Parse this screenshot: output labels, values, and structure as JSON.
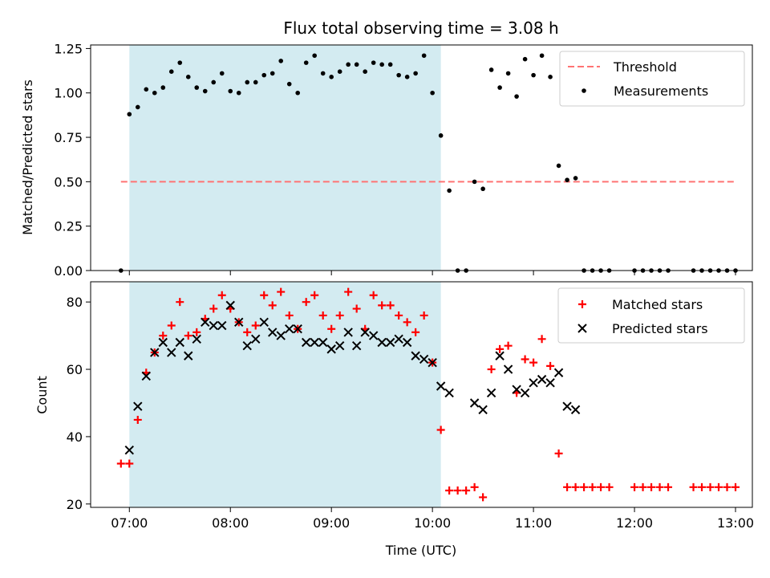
{
  "chart_data": [
    {
      "type": "scatter",
      "title": "Flux total observing time = 3.08 h",
      "xlabel": "",
      "ylabel": "Matched/Predicted stars",
      "xlim": [
        "06:37",
        "13:10"
      ],
      "ylim": [
        0,
        1.27
      ],
      "yticks": [
        "0.00",
        "0.25",
        "0.50",
        "0.75",
        "1.00",
        "1.25"
      ],
      "ytick_values": [
        0,
        0.25,
        0.5,
        0.75,
        1.0,
        1.25
      ],
      "shaded_span": [
        "07:00",
        "10:05"
      ],
      "shaded_color": "#d3ebf1",
      "legend_position": "top-right",
      "threshold": {
        "name": "Threshold",
        "y": 0.5,
        "x_start": "06:55",
        "x_end": "13:00",
        "color": "#ff7373"
      },
      "series": [
        {
          "name": "Measurements",
          "marker": "dot",
          "color": "#000000",
          "points": [
            [
              "06:55",
              0.0
            ],
            [
              "07:00",
              0.88
            ],
            [
              "07:05",
              0.92
            ],
            [
              "07:10",
              1.02
            ],
            [
              "07:15",
              1.0
            ],
            [
              "07:20",
              1.03
            ],
            [
              "07:25",
              1.12
            ],
            [
              "07:30",
              1.17
            ],
            [
              "07:35",
              1.09
            ],
            [
              "07:40",
              1.03
            ],
            [
              "07:45",
              1.01
            ],
            [
              "07:50",
              1.06
            ],
            [
              "07:55",
              1.11
            ],
            [
              "08:00",
              1.01
            ],
            [
              "08:05",
              1.0
            ],
            [
              "08:10",
              1.06
            ],
            [
              "08:15",
              1.06
            ],
            [
              "08:20",
              1.1
            ],
            [
              "08:25",
              1.11
            ],
            [
              "08:30",
              1.18
            ],
            [
              "08:35",
              1.05
            ],
            [
              "08:40",
              1.0
            ],
            [
              "08:45",
              1.17
            ],
            [
              "08:50",
              1.21
            ],
            [
              "08:55",
              1.11
            ],
            [
              "09:00",
              1.09
            ],
            [
              "09:05",
              1.12
            ],
            [
              "09:10",
              1.16
            ],
            [
              "09:15",
              1.16
            ],
            [
              "09:20",
              1.12
            ],
            [
              "09:25",
              1.17
            ],
            [
              "09:30",
              1.16
            ],
            [
              "09:35",
              1.16
            ],
            [
              "09:40",
              1.1
            ],
            [
              "09:45",
              1.09
            ],
            [
              "09:50",
              1.11
            ],
            [
              "09:55",
              1.21
            ],
            [
              "10:00",
              1.0
            ],
            [
              "10:05",
              0.76
            ],
            [
              "10:10",
              0.45
            ],
            [
              "10:15",
              0.0
            ],
            [
              "10:20",
              0.0
            ],
            [
              "10:25",
              0.5
            ],
            [
              "10:30",
              0.46
            ],
            [
              "10:35",
              1.13
            ],
            [
              "10:40",
              1.03
            ],
            [
              "10:45",
              1.11
            ],
            [
              "10:50",
              0.98
            ],
            [
              "10:55",
              1.19
            ],
            [
              "11:00",
              1.1
            ],
            [
              "11:05",
              1.21
            ],
            [
              "11:10",
              1.09
            ],
            [
              "11:15",
              0.59
            ],
            [
              "11:20",
              0.51
            ],
            [
              "11:25",
              0.52
            ],
            [
              "11:30",
              0.0
            ],
            [
              "11:35",
              0.0
            ],
            [
              "11:40",
              0.0
            ],
            [
              "11:45",
              0.0
            ],
            [
              "12:00",
              0.0
            ],
            [
              "12:05",
              0.0
            ],
            [
              "12:10",
              0.0
            ],
            [
              "12:15",
              0.0
            ],
            [
              "12:20",
              0.0
            ],
            [
              "12:35",
              0.0
            ],
            [
              "12:40",
              0.0
            ],
            [
              "12:45",
              0.0
            ],
            [
              "12:50",
              0.0
            ],
            [
              "12:55",
              0.0
            ],
            [
              "13:00",
              0.0
            ]
          ]
        }
      ]
    },
    {
      "type": "scatter",
      "title": "",
      "xlabel": "Time (UTC)",
      "ylabel": "Count",
      "xlim": [
        "06:37",
        "13:10"
      ],
      "ylim": [
        19,
        86
      ],
      "yticks": [
        "20",
        "40",
        "60",
        "80"
      ],
      "ytick_values": [
        20,
        40,
        60,
        80
      ],
      "xticks": [
        "07:00",
        "08:00",
        "09:00",
        "10:00",
        "11:00",
        "12:00",
        "13:00"
      ],
      "shaded_span": [
        "07:00",
        "10:05"
      ],
      "shaded_color": "#d3ebf1",
      "legend_position": "top-right",
      "series": [
        {
          "name": "Matched stars",
          "marker": "plus",
          "color": "#ff0000",
          "points": [
            [
              "06:55",
              32
            ],
            [
              "07:00",
              32
            ],
            [
              "07:05",
              45
            ],
            [
              "07:10",
              59
            ],
            [
              "07:15",
              65
            ],
            [
              "07:20",
              70
            ],
            [
              "07:25",
              73
            ],
            [
              "07:30",
              80
            ],
            [
              "07:35",
              70
            ],
            [
              "07:40",
              71
            ],
            [
              "07:45",
              75
            ],
            [
              "07:50",
              78
            ],
            [
              "07:55",
              82
            ],
            [
              "08:00",
              78
            ],
            [
              "08:05",
              74
            ],
            [
              "08:10",
              71
            ],
            [
              "08:15",
              73
            ],
            [
              "08:20",
              82
            ],
            [
              "08:25",
              79
            ],
            [
              "08:30",
              83
            ],
            [
              "08:35",
              76
            ],
            [
              "08:40",
              72
            ],
            [
              "08:45",
              80
            ],
            [
              "08:50",
              82
            ],
            [
              "08:55",
              76
            ],
            [
              "09:00",
              72
            ],
            [
              "09:05",
              76
            ],
            [
              "09:10",
              83
            ],
            [
              "09:15",
              78
            ],
            [
              "09:20",
              72
            ],
            [
              "09:25",
              82
            ],
            [
              "09:30",
              79
            ],
            [
              "09:35",
              79
            ],
            [
              "09:40",
              76
            ],
            [
              "09:45",
              74
            ],
            [
              "09:50",
              71
            ],
            [
              "09:55",
              76
            ],
            [
              "10:00",
              62
            ],
            [
              "10:05",
              42
            ],
            [
              "10:10",
              24
            ],
            [
              "10:15",
              24
            ],
            [
              "10:20",
              24
            ],
            [
              "10:25",
              25
            ],
            [
              "10:30",
              22
            ],
            [
              "10:35",
              60
            ],
            [
              "10:40",
              66
            ],
            [
              "10:45",
              67
            ],
            [
              "10:50",
              53
            ],
            [
              "10:55",
              63
            ],
            [
              "11:00",
              62
            ],
            [
              "11:05",
              69
            ],
            [
              "11:10",
              61
            ],
            [
              "11:15",
              35
            ],
            [
              "11:20",
              25
            ],
            [
              "11:25",
              25
            ],
            [
              "11:30",
              25
            ],
            [
              "11:35",
              25
            ],
            [
              "11:40",
              25
            ],
            [
              "11:45",
              25
            ],
            [
              "12:00",
              25
            ],
            [
              "12:05",
              25
            ],
            [
              "12:10",
              25
            ],
            [
              "12:15",
              25
            ],
            [
              "12:20",
              25
            ],
            [
              "12:35",
              25
            ],
            [
              "12:40",
              25
            ],
            [
              "12:45",
              25
            ],
            [
              "12:50",
              25
            ],
            [
              "12:55",
              25
            ],
            [
              "13:00",
              25
            ]
          ]
        },
        {
          "name": "Predicted stars",
          "marker": "x",
          "color": "#000000",
          "points": [
            [
              "07:00",
              36
            ],
            [
              "07:05",
              49
            ],
            [
              "07:10",
              58
            ],
            [
              "07:15",
              65
            ],
            [
              "07:20",
              68
            ],
            [
              "07:25",
              65
            ],
            [
              "07:30",
              68
            ],
            [
              "07:35",
              64
            ],
            [
              "07:40",
              69
            ],
            [
              "07:45",
              74
            ],
            [
              "07:50",
              73
            ],
            [
              "07:55",
              73
            ],
            [
              "08:00",
              79
            ],
            [
              "08:05",
              74
            ],
            [
              "08:10",
              67
            ],
            [
              "08:15",
              69
            ],
            [
              "08:20",
              74
            ],
            [
              "08:25",
              71
            ],
            [
              "08:30",
              70
            ],
            [
              "08:35",
              72
            ],
            [
              "08:40",
              72
            ],
            [
              "08:45",
              68
            ],
            [
              "08:50",
              68
            ],
            [
              "08:55",
              68
            ],
            [
              "09:00",
              66
            ],
            [
              "09:05",
              67
            ],
            [
              "09:10",
              71
            ],
            [
              "09:15",
              67
            ],
            [
              "09:20",
              71
            ],
            [
              "09:25",
              70
            ],
            [
              "09:30",
              68
            ],
            [
              "09:35",
              68
            ],
            [
              "09:40",
              69
            ],
            [
              "09:45",
              68
            ],
            [
              "09:50",
              64
            ],
            [
              "09:55",
              63
            ],
            [
              "10:00",
              62
            ],
            [
              "10:05",
              55
            ],
            [
              "10:10",
              53
            ],
            [
              "10:25",
              50
            ],
            [
              "10:30",
              48
            ],
            [
              "10:35",
              53
            ],
            [
              "10:40",
              64
            ],
            [
              "10:45",
              60
            ],
            [
              "10:50",
              54
            ],
            [
              "10:55",
              53
            ],
            [
              "11:00",
              56
            ],
            [
              "11:05",
              57
            ],
            [
              "11:10",
              56
            ],
            [
              "11:15",
              59
            ],
            [
              "11:20",
              49
            ],
            [
              "11:25",
              48
            ]
          ]
        }
      ]
    }
  ]
}
